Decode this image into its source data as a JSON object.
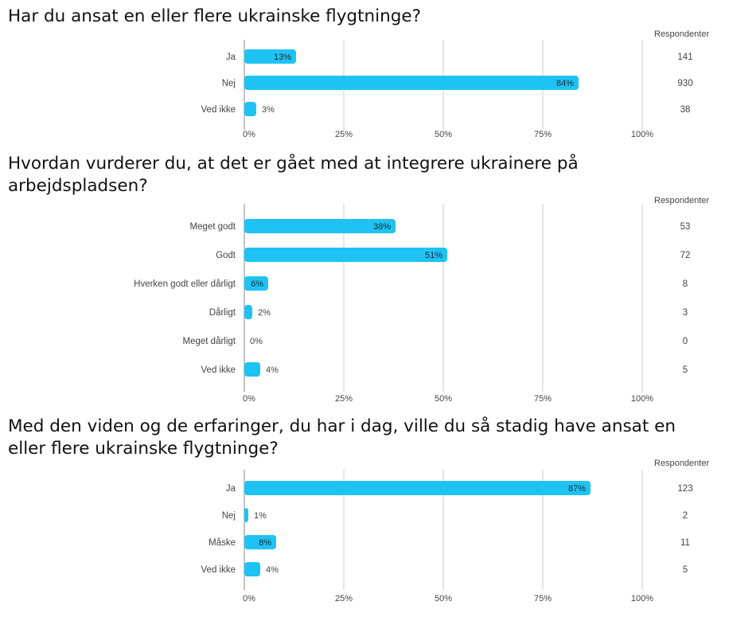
{
  "colors": {
    "bar": "#1fc3f3",
    "grid": "#cccccc",
    "axis": "#999999",
    "text": "#444444",
    "title": "#111111"
  },
  "chart_data": [
    {
      "type": "bar",
      "orientation": "horizontal",
      "title": "Har du ansat en eller flere ukrainske flygtninge?",
      "right_column_header": "Respondenter",
      "categories": [
        "Ja",
        "Nej",
        "Ved ikke"
      ],
      "values": [
        13,
        84,
        3
      ],
      "value_labels": [
        "13%",
        "84%",
        "3%"
      ],
      "respondents": [
        "141",
        "930",
        "38"
      ],
      "xlim": [
        0,
        100
      ],
      "x_ticks": [
        "0%",
        "25%",
        "50%",
        "75%",
        "100%"
      ],
      "grid": true
    },
    {
      "type": "bar",
      "orientation": "horizontal",
      "title": "Hvordan vurderer du, at det er gået med at integrere ukrainere på\narbejdspladsen?",
      "right_column_header": "Respondenter",
      "categories": [
        "Meget godt",
        "Godt",
        "Hverken godt eller dårligt",
        "Dårligt",
        "Meget dårligt",
        "Ved ikke"
      ],
      "values": [
        38,
        51,
        6,
        2,
        0,
        4
      ],
      "value_labels": [
        "38%",
        "51%",
        "6%",
        "2%",
        "0%",
        "4%"
      ],
      "respondents": [
        "53",
        "72",
        "8",
        "3",
        "0",
        "5"
      ],
      "xlim": [
        0,
        100
      ],
      "x_ticks": [
        "0%",
        "25%",
        "50%",
        "75%",
        "100%"
      ],
      "grid": true
    },
    {
      "type": "bar",
      "orientation": "horizontal",
      "title": "Med den viden og de erfaringer, du har i dag, ville du så stadig have ansat en\neller flere ukrainske flygtninge?",
      "right_column_header": "Respondenter",
      "categories": [
        "Ja",
        "Nej",
        "Måske",
        "Ved ikke"
      ],
      "values": [
        87,
        1,
        8,
        4
      ],
      "value_labels": [
        "87%",
        "1%",
        "8%",
        "4%"
      ],
      "respondents": [
        "123",
        "2",
        "11",
        "5"
      ],
      "xlim": [
        0,
        100
      ],
      "x_ticks": [
        "0%",
        "25%",
        "50%",
        "75%",
        "100%"
      ],
      "grid": true
    }
  ]
}
